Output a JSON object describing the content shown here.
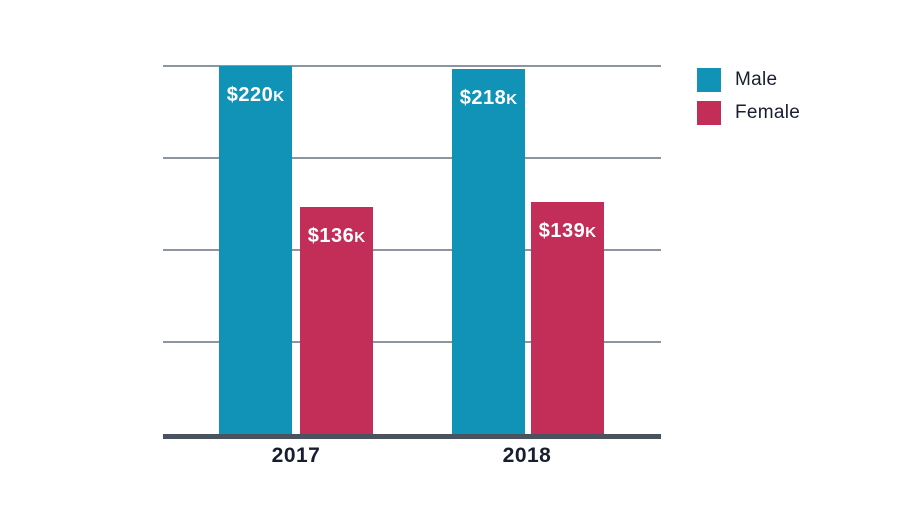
{
  "chart_data": {
    "type": "bar",
    "title": "",
    "categories": [
      "2017",
      "2018"
    ],
    "series": [
      {
        "name": "Male",
        "color": "#1192B7",
        "values": [
          220,
          218
        ],
        "value_labels": [
          {
            "text": "$220",
            "suffix": "K"
          },
          {
            "text": "$218",
            "suffix": "K"
          }
        ]
      },
      {
        "name": "Female",
        "color": "#C22E58",
        "values": [
          136,
          139
        ],
        "value_labels": [
          {
            "text": "$136",
            "suffix": "K"
          },
          {
            "text": "$139",
            "suffix": "K"
          }
        ]
      }
    ],
    "value_unit": "$K",
    "ylim": [
      0,
      220
    ],
    "gridline_interval": 55,
    "grid": true,
    "legend_position": "top-right",
    "styles": {
      "bar_label_color": "#FFFFFF",
      "gridline_color": "#8D94A2",
      "axis_color": "#49525E",
      "text_color": "#191D30",
      "background": "#FFFFFF"
    }
  }
}
